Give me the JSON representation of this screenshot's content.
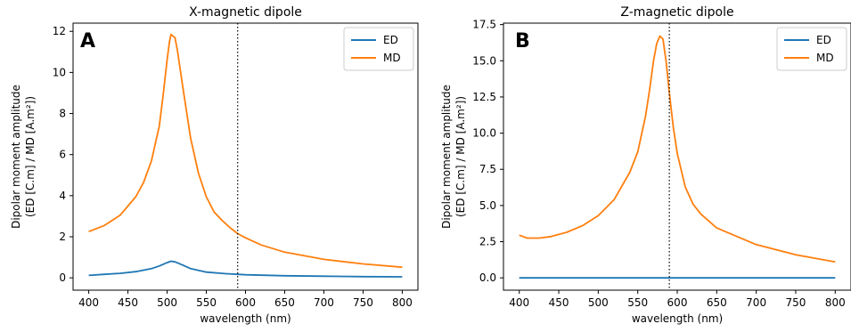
{
  "chart_data": [
    {
      "type": "line",
      "panel_letter": "A",
      "title": "X-magnetic dipole",
      "xlabel": "wavelength (nm)",
      "ylabel_line1": "Dipolar moment amplitude",
      "ylabel_line2": "(ED [C.m] / MD [A.m²])",
      "xlim": [
        380,
        820
      ],
      "ylim": [
        -0.6,
        12.4
      ],
      "xticks": [
        400,
        450,
        500,
        550,
        600,
        650,
        700,
        750,
        800
      ],
      "yticks": [
        0,
        2,
        4,
        6,
        8,
        10,
        12
      ],
      "ytick_labels": [
        "0",
        "2",
        "4",
        "6",
        "8",
        "10",
        "12"
      ],
      "vline_x": 590,
      "legend_position": "upper-right",
      "grid": false,
      "series": [
        {
          "name": "ED",
          "color": "#1f77b4",
          "x": [
            400,
            420,
            440,
            460,
            480,
            490,
            500,
            505,
            510,
            520,
            530,
            550,
            575,
            600,
            650,
            700,
            750,
            800
          ],
          "y": [
            0.12,
            0.17,
            0.22,
            0.3,
            0.45,
            0.58,
            0.74,
            0.81,
            0.78,
            0.62,
            0.45,
            0.28,
            0.2,
            0.15,
            0.1,
            0.08,
            0.06,
            0.05
          ]
        },
        {
          "name": "MD",
          "color": "#ff7f0e",
          "x": [
            400,
            420,
            440,
            460,
            470,
            480,
            490,
            495,
            500,
            503,
            505,
            508,
            510,
            513,
            520,
            530,
            540,
            550,
            560,
            570,
            580,
            590,
            600,
            620,
            650,
            700,
            750,
            800
          ],
          "y": [
            2.25,
            2.55,
            3.05,
            3.95,
            4.65,
            5.7,
            7.4,
            8.9,
            10.6,
            11.5,
            11.85,
            11.75,
            11.7,
            11.1,
            9.3,
            6.8,
            5.1,
            3.95,
            3.2,
            2.8,
            2.45,
            2.15,
            1.95,
            1.6,
            1.25,
            0.9,
            0.68,
            0.52
          ]
        }
      ]
    },
    {
      "type": "line",
      "panel_letter": "B",
      "title": "Z-magnetic dipole",
      "xlabel": "wavelength (nm)",
      "ylabel_line1": "Dipolar moment amplitude",
      "ylabel_line2": "(ED [C.m] / MD [A.m²])",
      "xlim": [
        380,
        820
      ],
      "ylim": [
        -0.85,
        17.6
      ],
      "xticks": [
        400,
        450,
        500,
        550,
        600,
        650,
        700,
        750,
        800
      ],
      "yticks": [
        0,
        2.5,
        5,
        7.5,
        10,
        12.5,
        15,
        17.5
      ],
      "ytick_labels": [
        "0.0",
        "2.5",
        "5.0",
        "7.5",
        "10.0",
        "12.5",
        "15.0",
        "17.5"
      ],
      "vline_x": 590,
      "legend_position": "upper-right",
      "grid": false,
      "series": [
        {
          "name": "ED",
          "color": "#1f77b4",
          "x": [
            400,
            500,
            600,
            700,
            800
          ],
          "y": [
            0.0,
            0.0,
            0.0,
            0.0,
            0.0
          ]
        },
        {
          "name": "MD",
          "color": "#ff7f0e",
          "x": [
            400,
            410,
            425,
            440,
            460,
            480,
            500,
            520,
            540,
            550,
            560,
            565,
            570,
            574,
            578,
            582,
            586,
            590,
            595,
            600,
            610,
            620,
            630,
            650,
            700,
            750,
            800
          ],
          "y": [
            2.95,
            2.75,
            2.75,
            2.85,
            3.15,
            3.6,
            4.3,
            5.4,
            7.3,
            8.7,
            11.2,
            13.0,
            15.0,
            16.2,
            16.7,
            16.5,
            14.9,
            12.8,
            10.4,
            8.6,
            6.3,
            5.1,
            4.4,
            3.45,
            2.3,
            1.6,
            1.1
          ]
        }
      ]
    }
  ]
}
